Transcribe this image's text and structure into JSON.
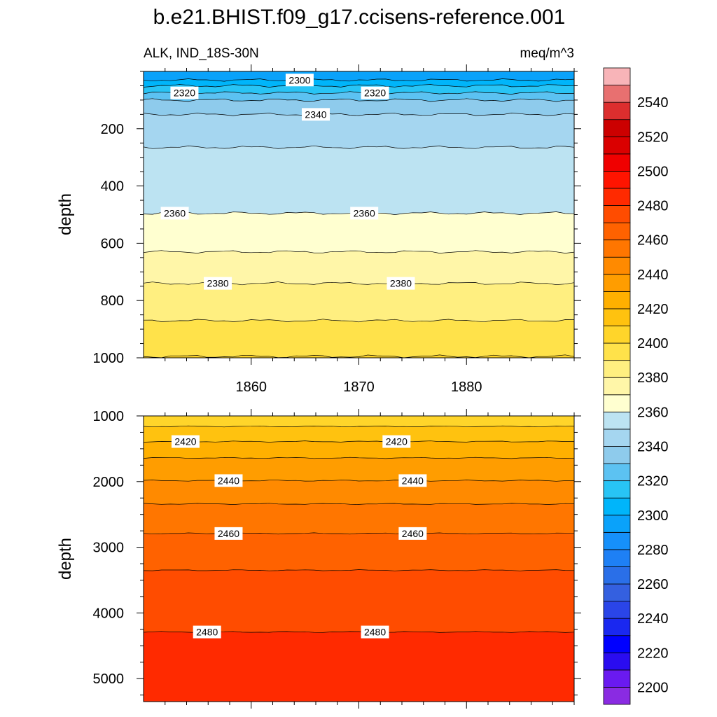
{
  "title": "b.e21.BHIST.f09_g17.ccisens-reference.001",
  "chart_data": [
    {
      "type": "contour",
      "panel": "upper",
      "left_label": "ALK, IND_18S-30N",
      "right_label": "meq/m^3",
      "ylabel": "depth",
      "ylim": [
        0,
        1000
      ],
      "y_inverted": true,
      "y_ticks": [
        200,
        400,
        600,
        800,
        1000
      ],
      "xlim": [
        1850,
        1890
      ],
      "x_ticks": [
        1860,
        1870,
        1880
      ],
      "x_tick_labels": [
        "1860",
        "1870",
        "1880"
      ],
      "contour_lines": [
        {
          "level": 2300,
          "depth": 30,
          "labels": [
            {
              "text": "2300",
              "x": 1864.5
            }
          ]
        },
        {
          "level": 2310,
          "depth": 50,
          "labels": []
        },
        {
          "level": 2320,
          "depth": 75,
          "labels": [
            {
              "text": "2320",
              "x": 1853.8
            },
            {
              "text": "2320",
              "x": 1871.5
            }
          ]
        },
        {
          "level": 2330,
          "depth": 100,
          "labels": []
        },
        {
          "level": 2340,
          "depth": 150,
          "labels": [
            {
              "text": "2340",
              "x": 1866.0
            }
          ]
        },
        {
          "level": 2350,
          "depth": 265,
          "labels": []
        },
        {
          "level": 2360,
          "depth": 495,
          "labels": [
            {
              "text": "2360",
              "x": 1852.9
            },
            {
              "text": "2360",
              "x": 1870.5
            }
          ]
        },
        {
          "level": 2370,
          "depth": 630,
          "labels": []
        },
        {
          "level": 2380,
          "depth": 740,
          "labels": [
            {
              "text": "2380",
              "x": 1856.9
            },
            {
              "text": "2380",
              "x": 1873.9
            }
          ]
        },
        {
          "level": 2390,
          "depth": 870,
          "labels": []
        },
        {
          "level": 2400,
          "depth": 995,
          "labels": []
        }
      ]
    },
    {
      "type": "contour",
      "panel": "lower",
      "ylabel": "depth",
      "ylim": [
        1000,
        5350
      ],
      "y_inverted": true,
      "y_ticks": [
        1000,
        2000,
        3000,
        4000,
        5000
      ],
      "xlim": [
        1850,
        1890
      ],
      "x_ticks": [
        1860,
        1870,
        1880
      ],
      "contour_lines": [
        {
          "level": 2410,
          "depth": 1160,
          "labels": []
        },
        {
          "level": 2420,
          "depth": 1390,
          "labels": [
            {
              "text": "2420",
              "x": 1853.9
            },
            {
              "text": "2420",
              "x": 1873.5
            }
          ]
        },
        {
          "level": 2430,
          "depth": 1640,
          "labels": []
        },
        {
          "level": 2440,
          "depth": 1985,
          "labels": [
            {
              "text": "2440",
              "x": 1857.9
            },
            {
              "text": "2440",
              "x": 1875.0
            }
          ]
        },
        {
          "level": 2450,
          "depth": 2340,
          "labels": []
        },
        {
          "level": 2460,
          "depth": 2790,
          "labels": [
            {
              "text": "2460",
              "x": 1857.9
            },
            {
              "text": "2460",
              "x": 1875.0
            }
          ]
        },
        {
          "level": 2470,
          "depth": 3350,
          "labels": []
        },
        {
          "level": 2480,
          "depth": 4290,
          "labels": [
            {
              "text": "2480",
              "x": 1855.9
            },
            {
              "text": "2480",
              "x": 1871.5
            }
          ]
        }
      ]
    }
  ],
  "colorbar": {
    "levels": [
      2200,
      2210,
      2220,
      2230,
      2240,
      2250,
      2260,
      2270,
      2280,
      2290,
      2300,
      2310,
      2320,
      2330,
      2340,
      2350,
      2360,
      2370,
      2380,
      2390,
      2400,
      2410,
      2420,
      2430,
      2440,
      2450,
      2460,
      2470,
      2480,
      2490,
      2500,
      2510,
      2520,
      2530,
      2540,
      2550
    ],
    "tick_labels": [
      "2200",
      "2220",
      "2240",
      "2260",
      "2280",
      "2300",
      "2320",
      "2340",
      "2360",
      "2380",
      "2400",
      "2420",
      "2440",
      "2460",
      "2480",
      "2500",
      "2520",
      "2540"
    ],
    "colors": [
      "#8a2be2",
      "#6a1af0",
      "#2a0cf0",
      "#0000ff",
      "#1a28f0",
      "#2a45e8",
      "#3460e0",
      "#2a6fe8",
      "#1e80f5",
      "#1690fa",
      "#0aa2fa",
      "#00b5fa",
      "#28c4f5",
      "#5cc2f2",
      "#8ecbec",
      "#a5d6f0",
      "#bce3f2",
      "#ffffd0",
      "#fff6a8",
      "#ffef80",
      "#ffe24a",
      "#ffd52a",
      "#ffc20f",
      "#ffb000",
      "#ff9d00",
      "#ff8a00",
      "#ff7600",
      "#ff6200",
      "#ff4c00",
      "#ff2a00",
      "#ff1400",
      "#f00000",
      "#da0000",
      "#cc0000",
      "#dc2e2e",
      "#e87070",
      "#f8b4b8"
    ]
  }
}
